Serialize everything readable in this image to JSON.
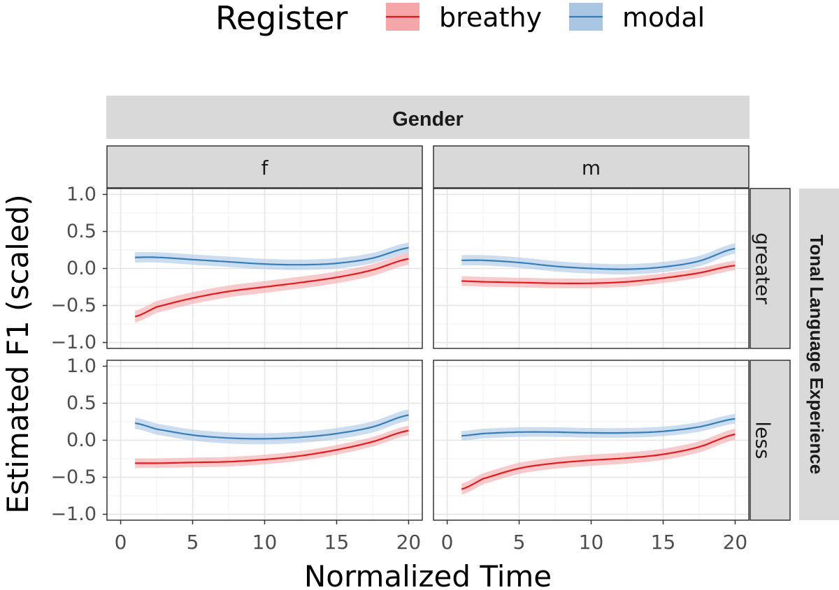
{
  "chart_data": {
    "type": "line",
    "title": "",
    "xlabel": "Normalized Time",
    "ylabel": "Estimated F1 (scaled)",
    "xlim": [
      -0.95,
      20.95
    ],
    "ylim": [
      -1.08,
      1.08
    ],
    "x_ticks": [
      "0",
      "5",
      "10",
      "15",
      "20"
    ],
    "y_ticks": [
      "1.0",
      "0.5",
      "0.0",
      "−0.5",
      "−1.0"
    ],
    "legend": {
      "title": "Register",
      "position": "top",
      "entries": [
        {
          "name": "breathy",
          "color": "#e41a1c",
          "fill": "#f4a6a8"
        },
        {
          "name": "modal",
          "color": "#377eb8",
          "fill": "#a9c6e2"
        }
      ]
    },
    "facet_col_title": "Gender",
    "facet_row_title": "Tonal Language Experience",
    "facet_cols": [
      "f",
      "m"
    ],
    "facet_rows": [
      "greater",
      "less"
    ],
    "x": [
      1,
      2.5,
      5,
      7.5,
      10,
      12.5,
      15,
      17.5,
      20
    ],
    "panels": [
      {
        "row": "greater",
        "col": "f",
        "series": [
          {
            "name": "breathy",
            "values": [
              -0.65,
              -0.52,
              -0.4,
              -0.31,
              -0.25,
              -0.19,
              -0.12,
              -0.02,
              0.13
            ],
            "half_width": 0.08
          },
          {
            "name": "modal",
            "values": [
              0.15,
              0.15,
              0.12,
              0.09,
              0.06,
              0.05,
              0.07,
              0.14,
              0.28
            ],
            "half_width": 0.07
          }
        ]
      },
      {
        "row": "greater",
        "col": "m",
        "series": [
          {
            "name": "breathy",
            "values": [
              -0.17,
              -0.18,
              -0.19,
              -0.2,
              -0.2,
              -0.18,
              -0.13,
              -0.06,
              0.04
            ],
            "half_width": 0.065
          },
          {
            "name": "modal",
            "values": [
              0.11,
              0.11,
              0.08,
              0.03,
              0.0,
              -0.01,
              0.02,
              0.1,
              0.27
            ],
            "half_width": 0.07
          }
        ]
      },
      {
        "row": "less",
        "col": "f",
        "series": [
          {
            "name": "breathy",
            "values": [
              -0.31,
              -0.31,
              -0.3,
              -0.29,
              -0.26,
              -0.21,
              -0.13,
              -0.02,
              0.13
            ],
            "half_width": 0.065
          },
          {
            "name": "modal",
            "values": [
              0.23,
              0.15,
              0.07,
              0.03,
              0.02,
              0.04,
              0.09,
              0.18,
              0.34
            ],
            "half_width": 0.075
          }
        ]
      },
      {
        "row": "less",
        "col": "m",
        "series": [
          {
            "name": "breathy",
            "values": [
              -0.66,
              -0.52,
              -0.38,
              -0.31,
              -0.27,
              -0.24,
              -0.19,
              -0.09,
              0.08
            ],
            "half_width": 0.075
          },
          {
            "name": "modal",
            "values": [
              0.06,
              0.09,
              0.11,
              0.11,
              0.1,
              0.1,
              0.12,
              0.18,
              0.29
            ],
            "half_width": 0.065
          }
        ]
      }
    ]
  }
}
